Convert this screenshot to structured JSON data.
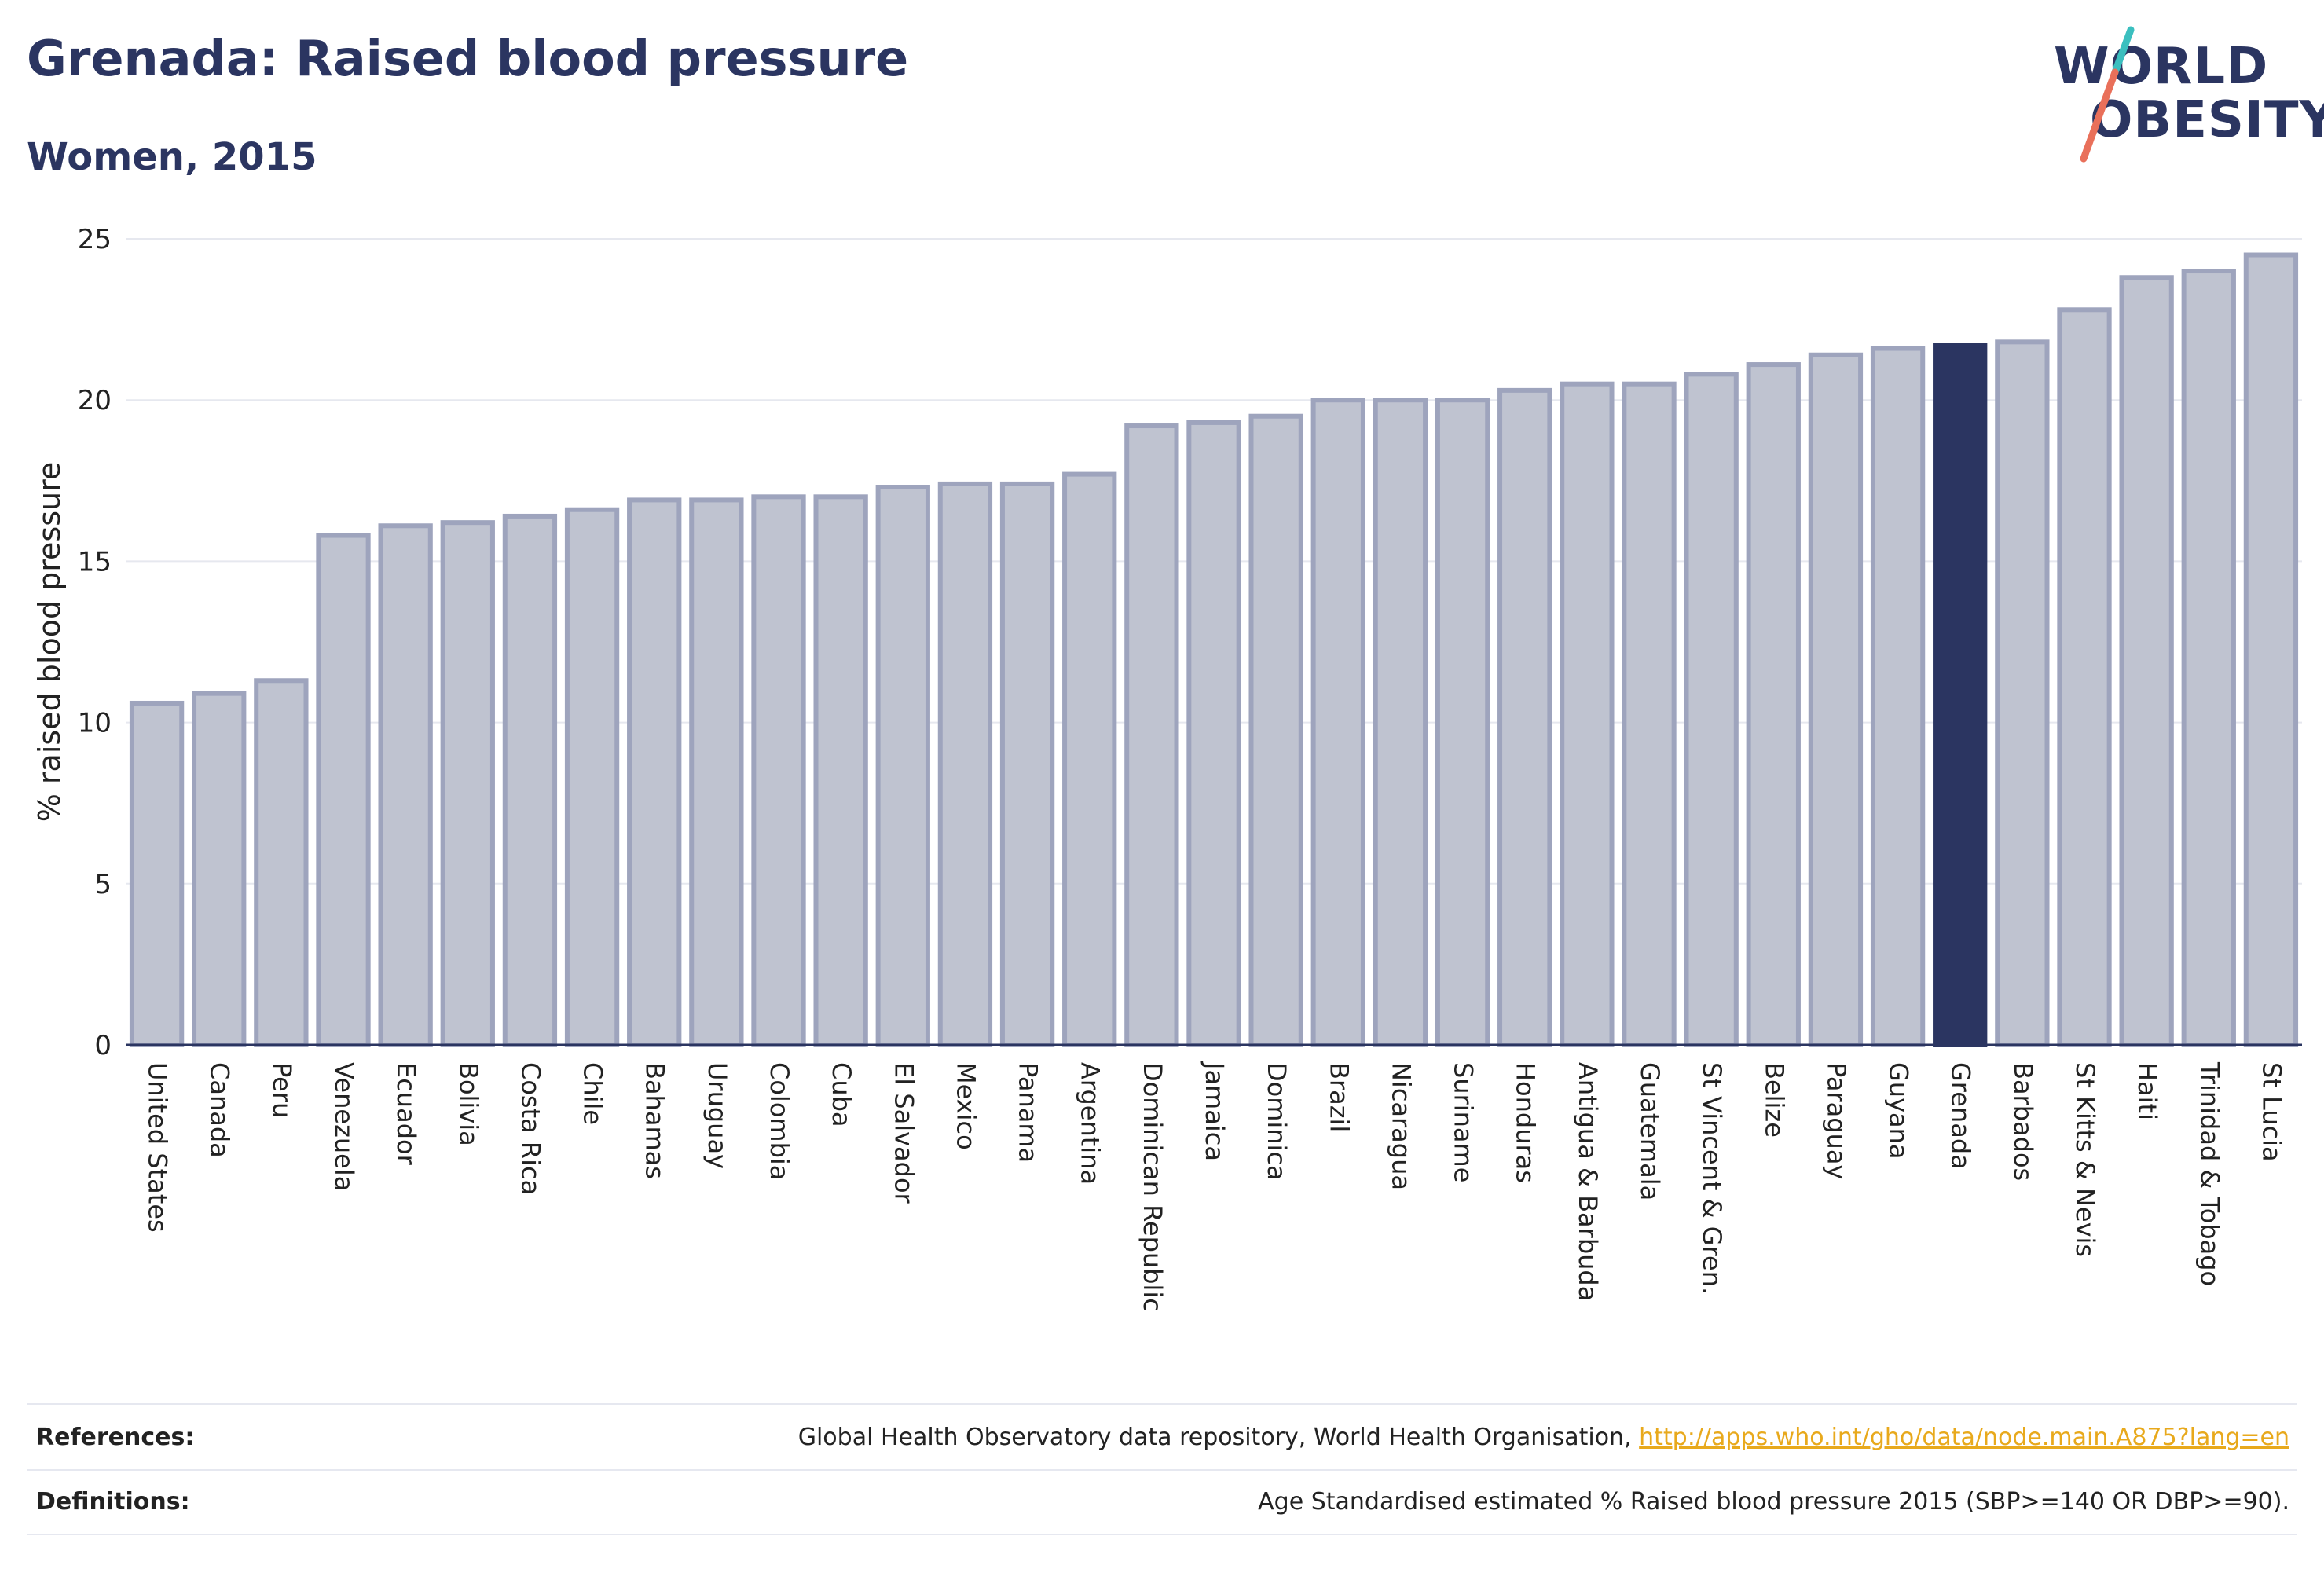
{
  "header": {
    "title": "Grenada: Raised blood pressure",
    "subtitle": "Women, 2015"
  },
  "logo": {
    "line1": "WORLD",
    "line2": "OBESITY",
    "colors": {
      "text": "#2b3561",
      "slash_top": "#3bbfbf",
      "slash_bottom": "#e9705a"
    }
  },
  "chart_data": {
    "type": "bar",
    "title": "Grenada: Raised blood pressure",
    "subtitle": "Women, 2015",
    "xlabel": "",
    "ylabel": "% raised blood pressure",
    "ylim": [
      0,
      25
    ],
    "yticks": [
      0,
      5,
      10,
      15,
      20,
      25
    ],
    "grid": true,
    "highlight": "Grenada",
    "colors": {
      "bar": "#bfc3d0",
      "bar_border": "#9ea4bd",
      "highlight": "#2b3561"
    },
    "categories": [
      "United States",
      "Canada",
      "Peru",
      "Venezuela",
      "Ecuador",
      "Bolivia",
      "Costa Rica",
      "Chile",
      "Bahamas",
      "Uruguay",
      "Colombia",
      "Cuba",
      "El Salvador",
      "Mexico",
      "Panama",
      "Argentina",
      "Dominican Republic",
      "Jamaica",
      "Dominica",
      "Brazil",
      "Nicaragua",
      "Suriname",
      "Honduras",
      "Antigua & Barbuda",
      "Guatemala",
      "St Vincent & Gren.",
      "Belize",
      "Paraguay",
      "Guyana",
      "Grenada",
      "Barbados",
      "St Kitts & Nevis",
      "Haiti",
      "Trinidad & Tobago",
      "St Lucia"
    ],
    "values": [
      10.6,
      10.9,
      11.3,
      15.8,
      16.1,
      16.2,
      16.4,
      16.6,
      16.9,
      16.9,
      17.0,
      17.0,
      17.3,
      17.4,
      17.4,
      17.7,
      19.2,
      19.3,
      19.5,
      20.0,
      20.0,
      20.0,
      20.3,
      20.5,
      20.5,
      20.8,
      21.1,
      21.4,
      21.6,
      21.7,
      21.8,
      22.8,
      23.8,
      24.0,
      24.5
    ]
  },
  "footer": {
    "references_label": "References:",
    "references_text": "Global Health Observatory data repository, World Health Organisation, ",
    "references_link": "http://apps.who.int/gho/data/node.main.A875?lang=en",
    "definitions_label": "Definitions:",
    "definitions_text": "Age Standardised estimated % Raised blood pressure 2015 (SBP>=140 OR DBP>=90)."
  }
}
